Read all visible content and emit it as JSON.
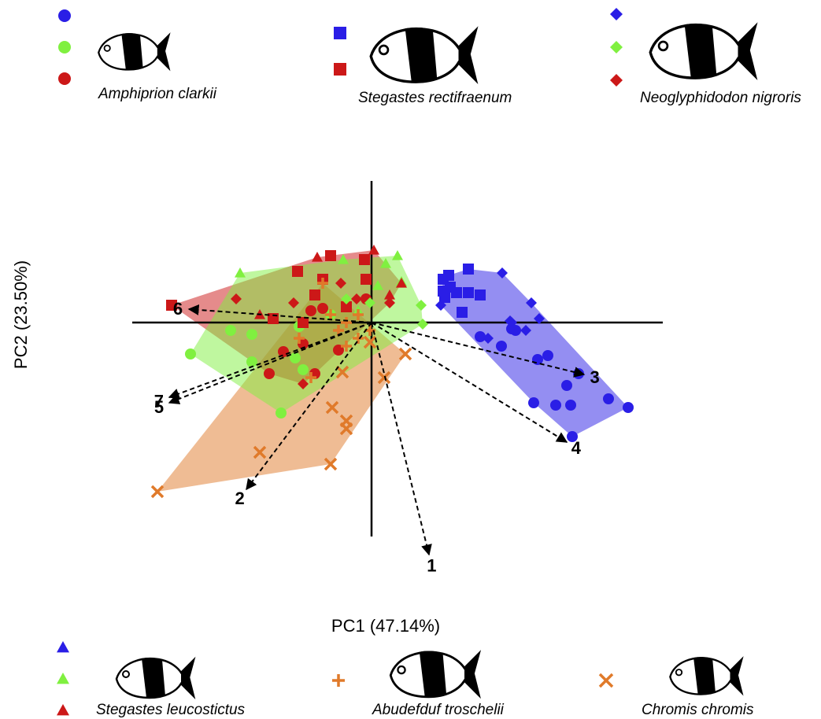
{
  "chart_data": {
    "type": "biplot",
    "x_label": "PC1 (47.14%)",
    "y_label": "PC2 (23.50%)",
    "xlim": [
      -3.0,
      3.7
    ],
    "ylim": [
      -3.2,
      1.8
    ],
    "species": [
      {
        "name": "Amphiprion clarkii",
        "marker": "circle",
        "groups": [
          {
            "color": "#2a1ee6",
            "x": [
              2.11,
              2.24,
              2.48,
              2.53,
              2.06,
              2.34,
              3.01,
              3.26,
              2.55,
              1.65,
              1.83,
              1.78,
              1.38,
              2.63
            ],
            "y": [
              -0.47,
              -0.42,
              -0.8,
              -1.05,
              -1.02,
              -1.05,
              -0.97,
              -1.08,
              -1.45,
              -0.3,
              -0.1,
              -0.08,
              -0.18,
              -0.65
            ]
          },
          {
            "color": "#80f040",
            "x": [
              -2.3,
              -1.15,
              -1.52,
              -0.87,
              -1.79,
              -1.52,
              -0.92,
              -0.52,
              -0.97
            ],
            "y": [
              -0.4,
              -1.15,
              -0.5,
              -0.6,
              -0.1,
              -0.15,
              -0.05,
              0.1,
              -0.45
            ]
          },
          {
            "color": "#cc1818",
            "x": [
              -1.12,
              -1.3,
              -0.77,
              -0.62,
              -0.87,
              -0.42,
              -0.72,
              -0.07
            ],
            "y": [
              -0.37,
              -0.65,
              0.15,
              0.18,
              -0.27,
              -0.35,
              -0.65,
              0.3
            ]
          }
        ]
      },
      {
        "name": "Stegastes rectifraenum",
        "marker": "square",
        "groups": [
          {
            "color": "#2a1ee6",
            "x": [
              0.91,
              1.0,
              1.23,
              0.93,
              1.08,
              1.23,
              1.38,
              1.15,
              0.98,
              0.91
            ],
            "y": [
              0.55,
              0.45,
              0.68,
              0.32,
              0.38,
              0.38,
              0.35,
              0.13,
              0.6,
              0.4
            ]
          },
          {
            "color": "#cc1818",
            "x": [
              -2.54,
              -1.25,
              -0.52,
              -0.09,
              -0.72,
              -0.62,
              -0.07,
              -0.32,
              -0.94,
              -0.87
            ],
            "y": [
              0.22,
              0.05,
              0.85,
              0.8,
              0.35,
              0.55,
              0.55,
              0.2,
              0.65,
              0.0
            ]
          }
        ]
      },
      {
        "name": "Neoglyphidodon nigroris",
        "marker": "diamond",
        "groups": [
          {
            "color": "#2a1ee6",
            "x": [
              1.66,
              2.03,
              2.13,
              1.78,
              1.96,
              1.48,
              1.76,
              0.88
            ],
            "y": [
              0.63,
              0.25,
              0.05,
              0.0,
              -0.1,
              -0.2,
              0.02,
              0.22
            ]
          },
          {
            "color": "#80f040",
            "x": [
              0.63,
              0.65,
              -0.02,
              -0.32
            ],
            "y": [
              0.22,
              -0.02,
              0.25,
              0.3
            ]
          },
          {
            "color": "#cc1818",
            "x": [
              -0.99,
              -1.72,
              0.23,
              -0.39,
              -0.87,
              -0.19
            ],
            "y": [
              0.25,
              0.3,
              0.25,
              0.5,
              -0.78,
              0.3
            ]
          }
        ]
      },
      {
        "name": "Stegastes leucostictus",
        "marker": "triangle",
        "groups": [
          {
            "color": "#2a1ee6",
            "x": [],
            "y": []
          },
          {
            "color": "#80f040",
            "x": [
              -1.67,
              0.33,
              0.18,
              -0.36,
              0.38,
              0.08,
              -0.17
            ],
            "y": [
              0.63,
              0.85,
              0.75,
              0.8,
              0.52,
              0.47,
              0.15
            ]
          },
          {
            "color": "#cc1818",
            "x": [
              -0.69,
              0.03,
              -1.42,
              0.23,
              0.38
            ],
            "y": [
              0.83,
              0.92,
              0.1,
              0.35,
              0.5
            ]
          }
        ]
      },
      {
        "name": "Abudefduf troschelii",
        "marker": "plus",
        "groups": [
          {
            "color": "#e07a2a",
            "x": [
              -0.42,
              -0.32,
              -0.52,
              -0.02,
              -0.17,
              -0.77,
              -0.92,
              -0.62,
              -0.32,
              -0.17
            ],
            "y": [
              -0.1,
              -0.3,
              0.1,
              -0.1,
              0.1,
              -0.7,
              -0.2,
              0.5,
              0.0,
              -0.2
            ]
          }
        ]
      },
      {
        "name": "Chromis chromis",
        "marker": "cross",
        "groups": [
          {
            "color": "#e07a2a",
            "x": [
              -2.72,
              -0.52,
              -1.42,
              -0.5,
              -0.32,
              -0.32,
              0.16,
              0.43,
              -0.37,
              -0.02
            ],
            "y": [
              -2.15,
              -1.8,
              -1.65,
              -1.08,
              -1.25,
              -1.35,
              -0.7,
              -0.4,
              -0.63,
              -0.25
            ]
          }
        ]
      }
    ],
    "loadings": {
      "labels": [
        "1",
        "2",
        "3",
        "4",
        "5",
        "6",
        "7"
      ],
      "x": [
        0.73,
        -1.59,
        2.7,
        2.48,
        -2.57,
        -2.32,
        -2.57
      ],
      "y": [
        -2.95,
        -2.12,
        -0.66,
        -1.52,
        -1.02,
        0.17,
        -0.95
      ]
    }
  }
}
